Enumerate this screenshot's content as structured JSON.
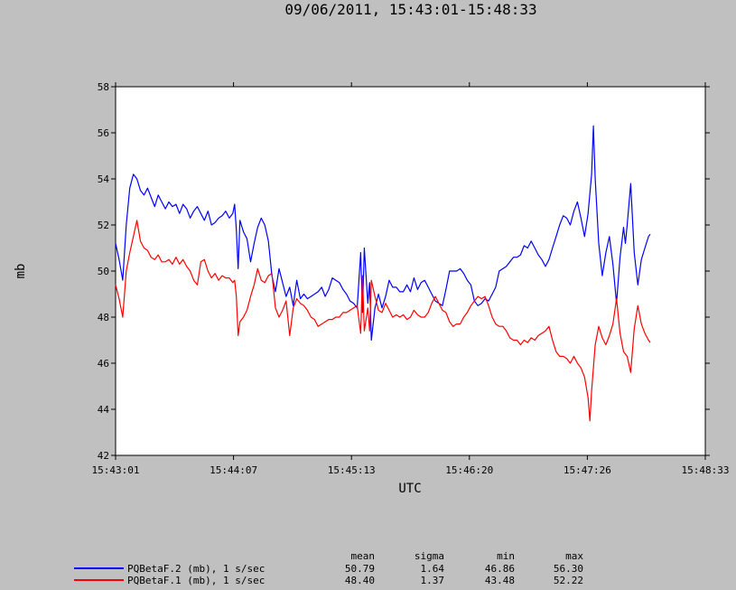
{
  "chart_data": {
    "type": "line",
    "title": "09/06/2011, 15:43:01-15:48:33",
    "xlabel": "UTC",
    "ylabel": "mb",
    "ylim": [
      42,
      58
    ],
    "yticks": [
      42,
      44,
      46,
      48,
      50,
      52,
      54,
      56,
      58
    ],
    "xlim_seconds": [
      0,
      332
    ],
    "xtick_labels": [
      "15:43:01",
      "15:44:07",
      "15:45:13",
      "15:46:20",
      "15:47:26",
      "15:48:33"
    ],
    "grid": false,
    "legend_position": "bottom-left",
    "stats_headers": [
      "mean",
      "sigma",
      "min",
      "max"
    ],
    "series": [
      {
        "name": "PQBetaF.2 (mb), 1 s/sec",
        "color": "#0000ff",
        "stats": [
          "50.79",
          "1.64",
          "46.86",
          "56.30"
        ],
        "points": [
          [
            0,
            51.2
          ],
          [
            2,
            50.5
          ],
          [
            4,
            49.6
          ],
          [
            6,
            52.0
          ],
          [
            8,
            53.6
          ],
          [
            10,
            54.2
          ],
          [
            12,
            54.0
          ],
          [
            14,
            53.5
          ],
          [
            16,
            53.3
          ],
          [
            18,
            53.6
          ],
          [
            20,
            53.2
          ],
          [
            22,
            52.8
          ],
          [
            24,
            53.3
          ],
          [
            26,
            53.0
          ],
          [
            28,
            52.7
          ],
          [
            30,
            53.0
          ],
          [
            32,
            52.8
          ],
          [
            34,
            52.9
          ],
          [
            36,
            52.5
          ],
          [
            38,
            52.9
          ],
          [
            40,
            52.7
          ],
          [
            42,
            52.3
          ],
          [
            44,
            52.6
          ],
          [
            46,
            52.8
          ],
          [
            48,
            52.5
          ],
          [
            50,
            52.2
          ],
          [
            52,
            52.6
          ],
          [
            54,
            52.0
          ],
          [
            56,
            52.1
          ],
          [
            58,
            52.3
          ],
          [
            60,
            52.4
          ],
          [
            62,
            52.6
          ],
          [
            64,
            52.3
          ],
          [
            66,
            52.5
          ],
          [
            67,
            52.9
          ],
          [
            68,
            51.8
          ],
          [
            69,
            50.1
          ],
          [
            70,
            52.2
          ],
          [
            72,
            51.7
          ],
          [
            74,
            51.4
          ],
          [
            76,
            50.4
          ],
          [
            78,
            51.2
          ],
          [
            80,
            51.9
          ],
          [
            82,
            52.3
          ],
          [
            84,
            52.0
          ],
          [
            86,
            51.3
          ],
          [
            88,
            49.8
          ],
          [
            90,
            49.1
          ],
          [
            92,
            50.1
          ],
          [
            94,
            49.5
          ],
          [
            96,
            48.9
          ],
          [
            98,
            49.3
          ],
          [
            100,
            48.5
          ],
          [
            102,
            49.6
          ],
          [
            104,
            48.8
          ],
          [
            106,
            49.0
          ],
          [
            108,
            48.8
          ],
          [
            110,
            48.9
          ],
          [
            112,
            49.0
          ],
          [
            114,
            49.1
          ],
          [
            116,
            49.3
          ],
          [
            118,
            48.9
          ],
          [
            120,
            49.2
          ],
          [
            122,
            49.7
          ],
          [
            124,
            49.6
          ],
          [
            126,
            49.5
          ],
          [
            128,
            49.2
          ],
          [
            130,
            49.0
          ],
          [
            132,
            48.7
          ],
          [
            134,
            48.6
          ],
          [
            136,
            48.4
          ],
          [
            138,
            50.8
          ],
          [
            139,
            48.2
          ],
          [
            140,
            51.0
          ],
          [
            142,
            48.6
          ],
          [
            143,
            49.5
          ],
          [
            144,
            47.0
          ],
          [
            146,
            48.4
          ],
          [
            148,
            49.0
          ],
          [
            150,
            48.4
          ],
          [
            152,
            48.9
          ],
          [
            154,
            49.6
          ],
          [
            156,
            49.3
          ],
          [
            158,
            49.3
          ],
          [
            160,
            49.1
          ],
          [
            162,
            49.1
          ],
          [
            164,
            49.4
          ],
          [
            166,
            49.1
          ],
          [
            168,
            49.7
          ],
          [
            170,
            49.2
          ],
          [
            172,
            49.5
          ],
          [
            174,
            49.6
          ],
          [
            176,
            49.3
          ],
          [
            178,
            49.0
          ],
          [
            180,
            48.7
          ],
          [
            182,
            48.6
          ],
          [
            184,
            48.5
          ],
          [
            186,
            49.2
          ],
          [
            188,
            50.0
          ],
          [
            190,
            50.0
          ],
          [
            192,
            50.0
          ],
          [
            194,
            50.1
          ],
          [
            196,
            49.9
          ],
          [
            198,
            49.6
          ],
          [
            200,
            49.4
          ],
          [
            202,
            48.7
          ],
          [
            204,
            48.5
          ],
          [
            206,
            48.6
          ],
          [
            208,
            48.8
          ],
          [
            210,
            48.7
          ],
          [
            212,
            49.0
          ],
          [
            214,
            49.3
          ],
          [
            216,
            50.0
          ],
          [
            218,
            50.1
          ],
          [
            220,
            50.2
          ],
          [
            222,
            50.4
          ],
          [
            224,
            50.6
          ],
          [
            226,
            50.6
          ],
          [
            228,
            50.7
          ],
          [
            230,
            51.1
          ],
          [
            232,
            51.0
          ],
          [
            234,
            51.3
          ],
          [
            236,
            51.0
          ],
          [
            238,
            50.7
          ],
          [
            240,
            50.5
          ],
          [
            242,
            50.2
          ],
          [
            244,
            50.5
          ],
          [
            246,
            51.0
          ],
          [
            248,
            51.5
          ],
          [
            250,
            52.0
          ],
          [
            252,
            52.4
          ],
          [
            254,
            52.3
          ],
          [
            256,
            52.0
          ],
          [
            258,
            52.6
          ],
          [
            260,
            53.0
          ],
          [
            262,
            52.3
          ],
          [
            264,
            51.5
          ],
          [
            266,
            52.5
          ],
          [
            268,
            54.2
          ],
          [
            269,
            56.3
          ],
          [
            270,
            54.0
          ],
          [
            272,
            51.2
          ],
          [
            274,
            49.8
          ],
          [
            276,
            50.8
          ],
          [
            278,
            51.5
          ],
          [
            280,
            50.3
          ],
          [
            282,
            48.6
          ],
          [
            284,
            50.6
          ],
          [
            286,
            51.9
          ],
          [
            287,
            51.2
          ],
          [
            288,
            52.0
          ],
          [
            290,
            53.8
          ],
          [
            292,
            50.8
          ],
          [
            294,
            49.4
          ],
          [
            296,
            50.5
          ],
          [
            298,
            51.0
          ],
          [
            300,
            51.5
          ],
          [
            301,
            51.6
          ]
        ]
      },
      {
        "name": "PQBetaF.1 (mb), 1 s/sec",
        "color": "#ff0000",
        "stats": [
          "48.40",
          "1.37",
          "43.48",
          "52.22"
        ],
        "points": [
          [
            0,
            49.4
          ],
          [
            2,
            48.8
          ],
          [
            4,
            48.0
          ],
          [
            6,
            50.0
          ],
          [
            8,
            50.8
          ],
          [
            10,
            51.5
          ],
          [
            12,
            52.2
          ],
          [
            14,
            51.3
          ],
          [
            16,
            51.0
          ],
          [
            18,
            50.9
          ],
          [
            20,
            50.6
          ],
          [
            22,
            50.5
          ],
          [
            24,
            50.7
          ],
          [
            26,
            50.4
          ],
          [
            28,
            50.4
          ],
          [
            30,
            50.5
          ],
          [
            32,
            50.3
          ],
          [
            34,
            50.6
          ],
          [
            36,
            50.3
          ],
          [
            38,
            50.5
          ],
          [
            40,
            50.2
          ],
          [
            42,
            50.0
          ],
          [
            44,
            49.6
          ],
          [
            46,
            49.4
          ],
          [
            48,
            50.4
          ],
          [
            50,
            50.5
          ],
          [
            52,
            50.0
          ],
          [
            54,
            49.7
          ],
          [
            56,
            49.9
          ],
          [
            58,
            49.6
          ],
          [
            60,
            49.8
          ],
          [
            62,
            49.7
          ],
          [
            64,
            49.7
          ],
          [
            66,
            49.5
          ],
          [
            67,
            49.6
          ],
          [
            68,
            48.9
          ],
          [
            69,
            47.2
          ],
          [
            70,
            47.8
          ],
          [
            72,
            48.0
          ],
          [
            74,
            48.3
          ],
          [
            76,
            48.9
          ],
          [
            78,
            49.4
          ],
          [
            80,
            50.1
          ],
          [
            82,
            49.6
          ],
          [
            84,
            49.5
          ],
          [
            86,
            49.8
          ],
          [
            88,
            49.9
          ],
          [
            90,
            48.4
          ],
          [
            92,
            48.0
          ],
          [
            94,
            48.3
          ],
          [
            96,
            48.7
          ],
          [
            98,
            47.2
          ],
          [
            100,
            48.4
          ],
          [
            102,
            48.8
          ],
          [
            104,
            48.6
          ],
          [
            106,
            48.5
          ],
          [
            108,
            48.3
          ],
          [
            110,
            48.0
          ],
          [
            112,
            47.9
          ],
          [
            114,
            47.6
          ],
          [
            116,
            47.7
          ],
          [
            118,
            47.8
          ],
          [
            120,
            47.9
          ],
          [
            122,
            47.9
          ],
          [
            124,
            48.0
          ],
          [
            126,
            48.0
          ],
          [
            128,
            48.2
          ],
          [
            130,
            48.2
          ],
          [
            132,
            48.3
          ],
          [
            134,
            48.4
          ],
          [
            136,
            48.5
          ],
          [
            138,
            47.3
          ],
          [
            139,
            49.8
          ],
          [
            140,
            47.4
          ],
          [
            142,
            48.4
          ],
          [
            143,
            47.4
          ],
          [
            144,
            49.6
          ],
          [
            146,
            48.9
          ],
          [
            148,
            48.3
          ],
          [
            150,
            48.2
          ],
          [
            152,
            48.6
          ],
          [
            154,
            48.3
          ],
          [
            156,
            48.0
          ],
          [
            158,
            48.1
          ],
          [
            160,
            48.0
          ],
          [
            162,
            48.1
          ],
          [
            164,
            47.9
          ],
          [
            166,
            48.0
          ],
          [
            168,
            48.3
          ],
          [
            170,
            48.1
          ],
          [
            172,
            48.0
          ],
          [
            174,
            48.0
          ],
          [
            176,
            48.2
          ],
          [
            178,
            48.6
          ],
          [
            180,
            48.9
          ],
          [
            182,
            48.6
          ],
          [
            184,
            48.3
          ],
          [
            186,
            48.2
          ],
          [
            188,
            47.8
          ],
          [
            190,
            47.6
          ],
          [
            192,
            47.7
          ],
          [
            194,
            47.7
          ],
          [
            196,
            48.0
          ],
          [
            198,
            48.2
          ],
          [
            200,
            48.5
          ],
          [
            202,
            48.7
          ],
          [
            204,
            48.9
          ],
          [
            206,
            48.8
          ],
          [
            208,
            48.9
          ],
          [
            210,
            48.5
          ],
          [
            212,
            48.0
          ],
          [
            214,
            47.7
          ],
          [
            216,
            47.6
          ],
          [
            218,
            47.6
          ],
          [
            220,
            47.4
          ],
          [
            222,
            47.1
          ],
          [
            224,
            47.0
          ],
          [
            226,
            47.0
          ],
          [
            228,
            46.8
          ],
          [
            230,
            47.0
          ],
          [
            232,
            46.9
          ],
          [
            234,
            47.1
          ],
          [
            236,
            47.0
          ],
          [
            238,
            47.2
          ],
          [
            240,
            47.3
          ],
          [
            242,
            47.4
          ],
          [
            244,
            47.6
          ],
          [
            246,
            47.0
          ],
          [
            248,
            46.5
          ],
          [
            250,
            46.3
          ],
          [
            252,
            46.3
          ],
          [
            254,
            46.2
          ],
          [
            256,
            46.0
          ],
          [
            258,
            46.3
          ],
          [
            260,
            46.0
          ],
          [
            262,
            45.8
          ],
          [
            264,
            45.4
          ],
          [
            266,
            44.5
          ],
          [
            267,
            43.5
          ],
          [
            268,
            44.8
          ],
          [
            270,
            46.8
          ],
          [
            272,
            47.6
          ],
          [
            274,
            47.1
          ],
          [
            276,
            46.8
          ],
          [
            278,
            47.2
          ],
          [
            280,
            47.7
          ],
          [
            282,
            48.8
          ],
          [
            284,
            47.3
          ],
          [
            286,
            46.5
          ],
          [
            288,
            46.3
          ],
          [
            290,
            45.6
          ],
          [
            292,
            47.5
          ],
          [
            294,
            48.5
          ],
          [
            296,
            47.7
          ],
          [
            298,
            47.3
          ],
          [
            300,
            47.0
          ],
          [
            301,
            46.9
          ]
        ]
      }
    ]
  }
}
